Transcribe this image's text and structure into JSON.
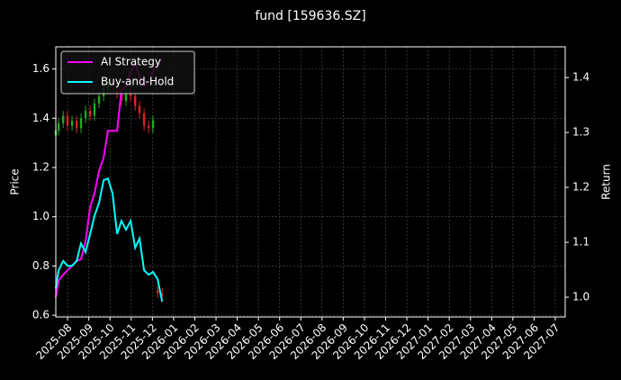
{
  "chart_data": {
    "type": "candlestick",
    "title": "fund [159636.SZ]",
    "ylabel": "Price",
    "y2label": "Return",
    "x": [
      2025.537,
      2025.548,
      2025.566,
      2025.583,
      2025.601,
      2025.619,
      2025.636,
      2025.654,
      2025.672,
      2025.689,
      2025.707,
      2025.725,
      2025.742,
      2025.76,
      2025.778,
      2025.795,
      2025.813,
      2025.831,
      2025.849,
      2025.866,
      2025.884,
      2025.902,
      2025.919,
      2025.937,
      2025.955
    ],
    "open": [
      1.33,
      1.35,
      1.38,
      1.41,
      1.37,
      1.39,
      1.36,
      1.4,
      1.43,
      1.41,
      1.46,
      1.49,
      1.52,
      1.55,
      1.53,
      1.5,
      1.47,
      1.51,
      1.49,
      1.45,
      1.42,
      1.37,
      1.36,
      0.7,
      0.69
    ],
    "high": [
      1.37,
      1.4,
      1.43,
      1.43,
      1.41,
      1.41,
      1.42,
      1.45,
      1.45,
      1.48,
      1.51,
      1.54,
      1.57,
      1.57,
      1.55,
      1.52,
      1.53,
      1.53,
      1.51,
      1.47,
      1.44,
      1.39,
      1.41,
      0.72,
      0.71
    ],
    "low": [
      1.31,
      1.33,
      1.36,
      1.35,
      1.35,
      1.34,
      1.34,
      1.38,
      1.39,
      1.39,
      1.44,
      1.47,
      1.5,
      1.51,
      1.48,
      1.45,
      1.45,
      1.47,
      1.43,
      1.4,
      1.35,
      1.34,
      1.34,
      0.67,
      0.66
    ],
    "close": [
      1.35,
      1.38,
      1.41,
      1.37,
      1.39,
      1.36,
      1.4,
      1.43,
      1.41,
      1.46,
      1.49,
      1.52,
      1.55,
      1.53,
      1.5,
      1.47,
      1.51,
      1.49,
      1.45,
      1.42,
      1.37,
      1.36,
      1.39,
      0.69,
      0.68
    ],
    "up_color": "#22aa22",
    "down_color": "#dd2222",
    "series": [
      {
        "name": "AI Strategy",
        "color": "#ff00ff",
        "axis": "y2",
        "values": [
          1.0,
          1.03,
          1.041,
          1.049,
          1.057,
          1.066,
          1.069,
          1.102,
          1.164,
          1.189,
          1.23,
          1.254,
          1.303,
          1.303,
          1.303,
          1.377,
          1.385,
          1.41,
          1.426,
          1.402,
          1.385,
          1.393,
          1.41,
          1.426,
          1.434
        ]
      },
      {
        "name": "Buy-and-Hold",
        "color": "#00ffff",
        "axis": "y2",
        "values": [
          1.016,
          1.049,
          1.066,
          1.057,
          1.057,
          1.066,
          1.098,
          1.082,
          1.115,
          1.148,
          1.172,
          1.213,
          1.216,
          1.189,
          1.115,
          1.139,
          1.123,
          1.139,
          1.09,
          1.107,
          1.049,
          1.041,
          1.046,
          1.033,
          0.992
        ]
      }
    ],
    "xlim": [
      2025.537,
      2027.539
    ],
    "xticks": [
      {
        "value": 2025.5833,
        "label": "2025-08"
      },
      {
        "value": 2025.6667,
        "label": "2025-09"
      },
      {
        "value": 2025.75,
        "label": "2025-10"
      },
      {
        "value": 2025.8333,
        "label": "2025-11"
      },
      {
        "value": 2025.9167,
        "label": "2025-12"
      },
      {
        "value": 2026.0,
        "label": "2026-01"
      },
      {
        "value": 2026.0833,
        "label": "2026-02"
      },
      {
        "value": 2026.1667,
        "label": "2026-03"
      },
      {
        "value": 2026.25,
        "label": "2026-04"
      },
      {
        "value": 2026.3333,
        "label": "2026-05"
      },
      {
        "value": 2026.4167,
        "label": "2026-06"
      },
      {
        "value": 2026.5,
        "label": "2026-07"
      },
      {
        "value": 2026.5833,
        "label": "2026-08"
      },
      {
        "value": 2026.6667,
        "label": "2026-09"
      },
      {
        "value": 2026.75,
        "label": "2026-10"
      },
      {
        "value": 2026.8333,
        "label": "2026-11"
      },
      {
        "value": 2026.9167,
        "label": "2026-12"
      },
      {
        "value": 2027.0,
        "label": "2027-01"
      },
      {
        "value": 2027.0833,
        "label": "2027-02"
      },
      {
        "value": 2027.1667,
        "label": "2027-03"
      },
      {
        "value": 2027.25,
        "label": "2027-04"
      },
      {
        "value": 2027.3333,
        "label": "2027-05"
      },
      {
        "value": 2027.4167,
        "label": "2027-06"
      },
      {
        "value": 2027.5,
        "label": "2027-07"
      }
    ],
    "ylim": [
      0.593,
      1.69
    ],
    "yticks": [
      0.6,
      0.8,
      {
        "value": 1,
        "label": "1.0"
      },
      1.2,
      1.4,
      1.6
    ],
    "y2lim": [
      0.964,
      1.456
    ],
    "y2ticks": [
      {
        "value": 1,
        "label": "1.0"
      },
      1.1,
      1.2,
      1.3,
      1.4
    ],
    "grid": true,
    "legend": "upper-left"
  }
}
